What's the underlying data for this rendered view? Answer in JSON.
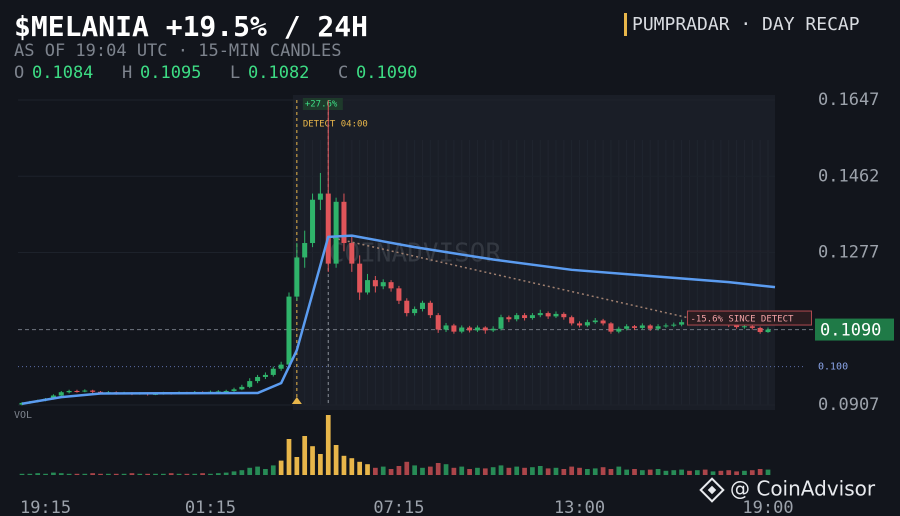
{
  "chart_data": {
    "type": "candlestick",
    "title": "$MELANIA +19.5% / 24H",
    "subtitle": "AS OF 19:04 UTC · 15-MIN CANDLES",
    "brand": "PUMPRADAR · DAY RECAP",
    "ohlc_labels": [
      {
        "letter": "O",
        "text": "0.1084"
      },
      {
        "letter": "H",
        "text": "0.1095"
      },
      {
        "letter": "L",
        "text": "0.1082"
      },
      {
        "letter": "C",
        "text": "0.1090"
      }
    ],
    "volume_label": "VOL",
    "watermark": "COINADVISOR",
    "credit": "@ CoinAdvisor",
    "up_color": "#2fb36a",
    "down_color": "#e0555a",
    "highlight_color": "#e8b64a",
    "ylim": [
      0.0907,
      0.1647
    ],
    "yticks": [
      0.0907,
      0.1277,
      0.1462,
      0.1647
    ],
    "xlim": [
      0,
      95
    ],
    "xticks": [
      {
        "value": 3,
        "label": "19:15"
      },
      {
        "value": 24,
        "label": "01:15"
      },
      {
        "value": 48,
        "label": "07:15"
      },
      {
        "value": 71,
        "label": "13:00"
      },
      {
        "value": 95,
        "label": "19:00"
      }
    ],
    "last_price": {
      "value": 0.109,
      "label": "0.1090"
    },
    "ref_line": {
      "value": 0.1,
      "label": "0.100"
    },
    "detect": {
      "x": 35,
      "label": "DETECT 04:00",
      "gain": "+27.6%"
    },
    "peak_x": 39,
    "since_detect": {
      "x": 85,
      "y": 0.1118,
      "label": "-15.6% SINCE DETECT"
    },
    "trend": {
      "x": [
        39,
        85
      ],
      "values": [
        0.1315,
        0.1118
      ]
    },
    "ma": {
      "color": "#5b9cf0",
      "x": [
        0,
        5,
        10,
        30,
        33,
        35,
        39,
        42,
        50,
        60,
        70,
        80,
        90,
        96
      ],
      "values": [
        0.091,
        0.0926,
        0.0935,
        0.0936,
        0.096,
        0.104,
        0.1315,
        0.1318,
        0.129,
        0.126,
        0.1235,
        0.122,
        0.1205,
        0.1193
      ]
    },
    "volume_lim": [
      0,
      100
    ],
    "volume_highlight": [
      33,
      44
    ],
    "candles": [
      [
        0.0908,
        0.0914,
        0.0906,
        0.0912
      ],
      [
        0.0912,
        0.0917,
        0.091,
        0.0915
      ],
      [
        0.0915,
        0.092,
        0.0913,
        0.0918
      ],
      [
        0.0918,
        0.0924,
        0.0916,
        0.0922
      ],
      [
        0.0922,
        0.0933,
        0.092,
        0.093
      ],
      [
        0.093,
        0.0941,
        0.0928,
        0.0938
      ],
      [
        0.0938,
        0.0944,
        0.0935,
        0.0941
      ],
      [
        0.0941,
        0.0944,
        0.0937,
        0.094
      ],
      [
        0.094,
        0.0945,
        0.0938,
        0.0942
      ],
      [
        0.0942,
        0.0944,
        0.0936,
        0.0939
      ],
      [
        0.0939,
        0.0941,
        0.0934,
        0.0937
      ],
      [
        0.0937,
        0.0941,
        0.0935,
        0.0938
      ],
      [
        0.0938,
        0.094,
        0.0932,
        0.0935
      ],
      [
        0.0935,
        0.0939,
        0.0933,
        0.0936
      ],
      [
        0.0936,
        0.0938,
        0.0931,
        0.0934
      ],
      [
        0.0934,
        0.0938,
        0.0932,
        0.0935
      ],
      [
        0.0935,
        0.0937,
        0.093,
        0.0933
      ],
      [
        0.0933,
        0.0937,
        0.0931,
        0.0934
      ],
      [
        0.0934,
        0.0939,
        0.0932,
        0.0936
      ],
      [
        0.0936,
        0.0938,
        0.0932,
        0.0935
      ],
      [
        0.0935,
        0.094,
        0.0933,
        0.0937
      ],
      [
        0.0937,
        0.0939,
        0.0933,
        0.0936
      ],
      [
        0.0936,
        0.0941,
        0.0934,
        0.0938
      ],
      [
        0.0938,
        0.094,
        0.0934,
        0.0937
      ],
      [
        0.0937,
        0.0942,
        0.0935,
        0.0939
      ],
      [
        0.0939,
        0.0943,
        0.0936,
        0.094
      ],
      [
        0.094,
        0.0944,
        0.0937,
        0.0941
      ],
      [
        0.0941,
        0.0949,
        0.0939,
        0.0945
      ],
      [
        0.0945,
        0.0956,
        0.0943,
        0.0951
      ],
      [
        0.0951,
        0.0972,
        0.0948,
        0.0965
      ],
      [
        0.0965,
        0.098,
        0.096,
        0.0975
      ],
      [
        0.0975,
        0.0986,
        0.097,
        0.098
      ],
      [
        0.098,
        0.1,
        0.0976,
        0.0995
      ],
      [
        0.0995,
        0.1012,
        0.099,
        0.1005
      ],
      [
        0.1005,
        0.118,
        0.1,
        0.117
      ],
      [
        0.117,
        0.13,
        0.116,
        0.1265
      ],
      [
        0.1265,
        0.133,
        0.124,
        0.13
      ],
      [
        0.13,
        0.142,
        0.129,
        0.1405
      ],
      [
        0.1405,
        0.147,
        0.138,
        0.142
      ],
      [
        0.142,
        0.1647,
        0.123,
        0.125
      ],
      [
        0.125,
        0.141,
        0.124,
        0.14
      ],
      [
        0.14,
        0.142,
        0.128,
        0.13
      ],
      [
        0.13,
        0.132,
        0.123,
        0.125
      ],
      [
        0.125,
        0.127,
        0.1162,
        0.118
      ],
      [
        0.118,
        0.1225,
        0.1175,
        0.121
      ],
      [
        0.121,
        0.122,
        0.118,
        0.1195
      ],
      [
        0.1195,
        0.1212,
        0.1188,
        0.1205
      ],
      [
        0.1205,
        0.121,
        0.1182,
        0.119
      ],
      [
        0.119,
        0.1196,
        0.1152,
        0.116
      ],
      [
        0.116,
        0.1166,
        0.1122,
        0.113
      ],
      [
        0.113,
        0.1146,
        0.1124,
        0.114
      ],
      [
        0.114,
        0.116,
        0.1134,
        0.1155
      ],
      [
        0.1155,
        0.116,
        0.1118,
        0.1125
      ],
      [
        0.1125,
        0.113,
        0.1082,
        0.109
      ],
      [
        0.109,
        0.1106,
        0.1084,
        0.11
      ],
      [
        0.11,
        0.1104,
        0.108,
        0.1085
      ],
      [
        0.1085,
        0.11,
        0.1081,
        0.1095
      ],
      [
        0.1095,
        0.1099,
        0.1083,
        0.1088
      ],
      [
        0.1088,
        0.11,
        0.1084,
        0.1095
      ],
      [
        0.1095,
        0.1098,
        0.108,
        0.1088
      ],
      [
        0.1088,
        0.1098,
        0.1084,
        0.1092
      ],
      [
        0.1092,
        0.1126,
        0.1088,
        0.112
      ],
      [
        0.112,
        0.1124,
        0.1108,
        0.1115
      ],
      [
        0.1115,
        0.113,
        0.111,
        0.1125
      ],
      [
        0.1125,
        0.113,
        0.1112,
        0.1118
      ],
      [
        0.1118,
        0.113,
        0.1114,
        0.1125
      ],
      [
        0.1125,
        0.1138,
        0.112,
        0.113
      ],
      [
        0.113,
        0.1134,
        0.1116,
        0.1122
      ],
      [
        0.1122,
        0.1134,
        0.1118,
        0.1128
      ],
      [
        0.1128,
        0.1132,
        0.1114,
        0.112
      ],
      [
        0.112,
        0.1124,
        0.11,
        0.1105
      ],
      [
        0.1105,
        0.111,
        0.1095,
        0.11
      ],
      [
        0.11,
        0.1114,
        0.1096,
        0.1108
      ],
      [
        0.1108,
        0.1118,
        0.1104,
        0.1112
      ],
      [
        0.1112,
        0.1116,
        0.11,
        0.1105
      ],
      [
        0.1105,
        0.1108,
        0.108,
        0.1085
      ],
      [
        0.1085,
        0.1097,
        0.1081,
        0.1092
      ],
      [
        0.1092,
        0.1103,
        0.1088,
        0.1098
      ],
      [
        0.1098,
        0.1101,
        0.1089,
        0.1094
      ],
      [
        0.1094,
        0.1105,
        0.109,
        0.11
      ],
      [
        0.11,
        0.1103,
        0.1087,
        0.1092
      ],
      [
        0.1092,
        0.1103,
        0.1088,
        0.1098
      ],
      [
        0.1098,
        0.1105,
        0.1094,
        0.11
      ],
      [
        0.11,
        0.1107,
        0.1096,
        0.1102
      ],
      [
        0.1102,
        0.1114,
        0.1098,
        0.1108
      ],
      [
        0.1108,
        0.1111,
        0.11,
        0.1104
      ],
      [
        0.1104,
        0.1116,
        0.11,
        0.111
      ],
      [
        0.111,
        0.1113,
        0.1102,
        0.1106
      ],
      [
        0.1106,
        0.1113,
        0.1102,
        0.1108
      ],
      [
        0.1108,
        0.1111,
        0.11,
        0.1104
      ],
      [
        0.1104,
        0.1107,
        0.1096,
        0.11
      ],
      [
        0.11,
        0.1104,
        0.1092,
        0.1096
      ],
      [
        0.1096,
        0.1102,
        0.1092,
        0.1098
      ],
      [
        0.1098,
        0.1101,
        0.109,
        0.1094
      ],
      [
        0.1094,
        0.1097,
        0.108,
        0.1084
      ],
      [
        0.1084,
        0.1095,
        0.1082,
        0.109
      ]
    ],
    "volume": [
      2,
      2,
      3,
      2,
      4,
      3,
      2,
      2,
      2,
      3,
      2,
      2,
      2,
      2,
      3,
      2,
      2,
      2,
      2,
      3,
      2,
      2,
      2,
      3,
      2,
      3,
      4,
      6,
      8,
      12,
      14,
      10,
      16,
      24,
      60,
      30,
      65,
      48,
      35,
      100,
      50,
      32,
      28,
      22,
      18,
      12,
      14,
      10,
      15,
      22,
      16,
      12,
      14,
      20,
      18,
      12,
      14,
      10,
      12,
      11,
      13,
      16,
      12,
      14,
      12,
      13,
      15,
      11,
      12,
      10,
      14,
      12,
      10,
      11,
      13,
      10,
      14,
      9,
      10,
      8,
      9,
      10,
      7,
      8,
      9,
      7,
      8,
      9,
      6,
      7,
      8,
      6,
      7,
      8,
      10,
      9
    ]
  }
}
